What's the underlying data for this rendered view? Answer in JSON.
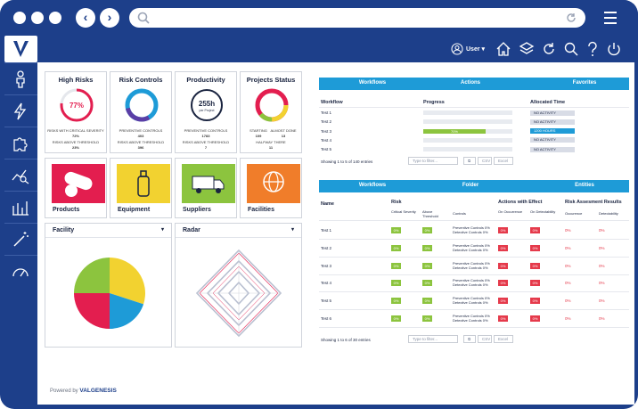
{
  "browser": {
    "url_placeholder": ""
  },
  "user": {
    "name": "User ▾"
  },
  "kpi": [
    {
      "title": "High Risks",
      "value": "77%",
      "line1": "RISKS WITH CRITICAL SEVERITY",
      "line1_val": "72%",
      "line2": "RISKS ABOVE THRESHOLD",
      "line2_val": "23%"
    },
    {
      "title": "Risk Controls",
      "line1": "PREVENTIVE CONTROLS",
      "line1_val": "403",
      "line2": "RISKS ABOVE THRESHOLD",
      "line2_val": "396"
    },
    {
      "title": "Productivity",
      "value": "255h",
      "sub": "per Project",
      "line1": "PREVENTIVE CONTROLS",
      "line1_val": "1783",
      "line2": "RISKS ABOVE THRESHOLD",
      "line2_val": "7"
    },
    {
      "title": "Projects Status",
      "col1": "STARTING",
      "col1_val": "109",
      "col2": "ALMOST DONE",
      "col2_val": "13",
      "line2": "HALFWAY THERE",
      "line2_val": "11"
    }
  ],
  "tiles": [
    {
      "label": "Products",
      "color": "#e31e4f"
    },
    {
      "label": "Equipment",
      "color": "#f2d230"
    },
    {
      "label": "Suppliers",
      "color": "#8cc43e"
    },
    {
      "label": "Facilities",
      "color": "#f07d2a"
    }
  ],
  "facility": {
    "title": "Facility",
    "chevron": "▾",
    "chart_data": {
      "type": "pie",
      "slices": [
        {
          "value": 30,
          "color": "#f2d230"
        },
        {
          "value": 20,
          "color": "#1e9bd7"
        },
        {
          "value": 25,
          "color": "#e31e4f"
        },
        {
          "value": 25,
          "color": "#8cc43e"
        }
      ]
    }
  },
  "radar": {
    "title": "Radar",
    "chevron": "▾"
  },
  "workflow_table": {
    "tabs": [
      "Workflows",
      "Actions",
      "Favorites"
    ],
    "headers": [
      "Workflow",
      "Progress",
      "Allocated Time"
    ],
    "rows": [
      {
        "name": "Test 1",
        "progress": 0,
        "time": "NO ACTIVITY",
        "highlight": false
      },
      {
        "name": "Test 2",
        "progress": 0,
        "time": "NO ACTIVITY",
        "highlight": false
      },
      {
        "name": "Test 3",
        "progress": 0.7,
        "progress_label": "70%",
        "time": "1200 HOURS",
        "highlight": true
      },
      {
        "name": "Test 4",
        "progress": 0,
        "time": "NO ACTIVITY",
        "highlight": false
      },
      {
        "name": "Test 5",
        "progress": 0,
        "time": "NO ACTIVITY",
        "highlight": false
      }
    ],
    "footer": "Showing 1 to 5 of 140 entries",
    "filter_placeholder": "Type to filter...",
    "csv": "CSV",
    "excel": "Excel"
  },
  "risk_table": {
    "tabs": [
      "Workflows",
      "Folder",
      "Entities"
    ],
    "group_headers": [
      "Name",
      "Risk",
      "Actions with Effect",
      "Risk Assesment Results"
    ],
    "sub_headers": [
      "Critical Severity",
      "Above Threshold",
      "Controls",
      "On Occurrence",
      "On Detectability",
      "Occurence",
      "Detectability"
    ],
    "rows": [
      {
        "name": "Test 1",
        "crit": "0%",
        "above": "0%",
        "c1": "Preventive Controls 0%",
        "c2": "Detective Controls 0%",
        "occ": "0%",
        "det": "0%",
        "rocc": "0%",
        "rdet": "0%"
      },
      {
        "name": "Test 2",
        "crit": "0%",
        "above": "0%",
        "c1": "Preventive Controls 0%",
        "c2": "Detective Controls 0%",
        "occ": "0%",
        "det": "0%",
        "rocc": "0%",
        "rdet": "0%"
      },
      {
        "name": "Test 3",
        "crit": "0%",
        "above": "0%",
        "c1": "Preventive Controls 0%",
        "c2": "Detective Controls 0%",
        "occ": "0%",
        "det": "0%",
        "rocc": "0%",
        "rdet": "0%"
      },
      {
        "name": "Test 4",
        "crit": "0%",
        "above": "0%",
        "c1": "Preventive Controls 0%",
        "c2": "Detective Controls 0%",
        "occ": "0%",
        "det": "0%",
        "rocc": "0%",
        "rdet": "0%"
      },
      {
        "name": "Test 5",
        "crit": "0%",
        "above": "0%",
        "c1": "Preventive Controls 0%",
        "c2": "Detective Controls 0%",
        "occ": "0%",
        "det": "0%",
        "rocc": "0%",
        "rdet": "0%"
      },
      {
        "name": "Test 6",
        "crit": "0%",
        "above": "0%",
        "c1": "Preventive Controls 0%",
        "c2": "Detective Controls 0%",
        "occ": "0%",
        "det": "0%",
        "rocc": "0%",
        "rdet": "0%"
      }
    ],
    "footer": "Showing 1 to 6 of 30 entries",
    "filter_placeholder": "Type to filter...",
    "csv": "CSV",
    "excel": "Excel"
  },
  "footer": {
    "powered": "Powered by",
    "brand": "VALGENESIS"
  }
}
